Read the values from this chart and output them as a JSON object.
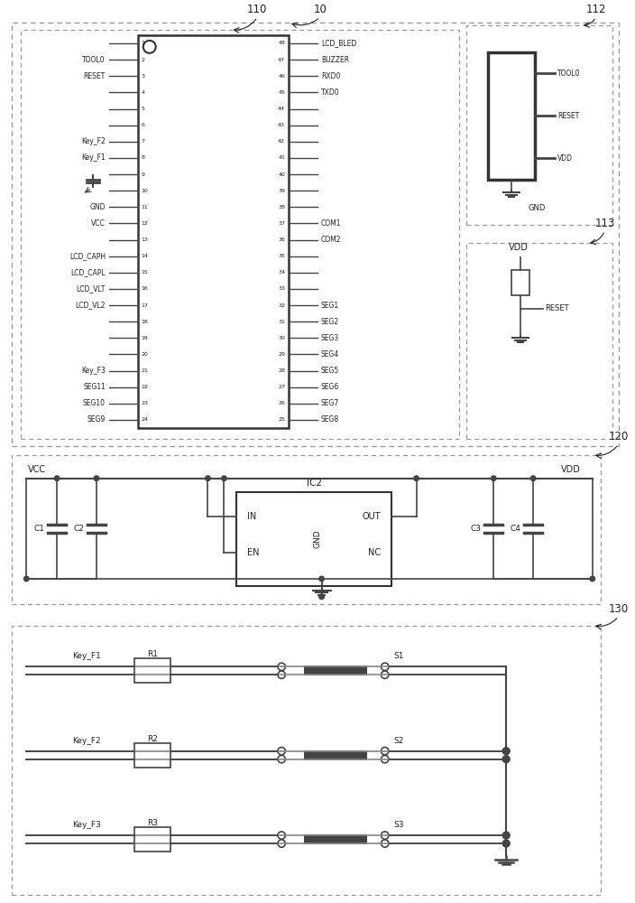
{
  "bg_color": "#ffffff",
  "line_color": "#444444",
  "text_color": "#222222",
  "dash_color": "#888888",
  "left_pins": [
    "1",
    "2",
    "3",
    "4",
    "5",
    "6",
    "7",
    "8",
    "9",
    "10",
    "11",
    "12",
    "13",
    "14",
    "15",
    "16",
    "17",
    "18",
    "19",
    "20",
    "21",
    "22",
    "23",
    "24"
  ],
  "right_pins": [
    "48",
    "47",
    "46",
    "45",
    "44",
    "43",
    "42",
    "41",
    "40",
    "39",
    "38",
    "37",
    "36",
    "35",
    "34",
    "33",
    "32",
    "31",
    "30",
    "29",
    "28",
    "27",
    "26",
    "25"
  ],
  "left_labels": {
    "2": "TOOL0",
    "3": "RESET",
    "7": "Key_F2",
    "8": "Key_F1",
    "11": "GND",
    "12": "VCC",
    "14": "LCD_CAPH",
    "15": "LCD_CAPL",
    "16": "LCD_VLT",
    "17": "LCD_VL2",
    "21": "Key_F3",
    "22": "SEG11",
    "23": "SEG10",
    "24": "SEG9"
  },
  "right_labels": {
    "48": "LCD_BLED",
    "47": "BUZZER",
    "46": "RXD0",
    "45": "TXD0",
    "37": "COM1",
    "36": "COM2",
    "32": "SEG1",
    "31": "SEG2",
    "30": "SEG3",
    "29": "SEG4",
    "28": "SEG5",
    "27": "SEG6",
    "26": "SEG7",
    "25": "SEG8"
  },
  "key_rows": [
    {
      "key": "Key_F1",
      "r": "R1",
      "s": "S1"
    },
    {
      "key": "Key_F2",
      "r": "R2",
      "s": "S2"
    },
    {
      "key": "Key_F3",
      "r": "R3",
      "s": "S3"
    }
  ]
}
